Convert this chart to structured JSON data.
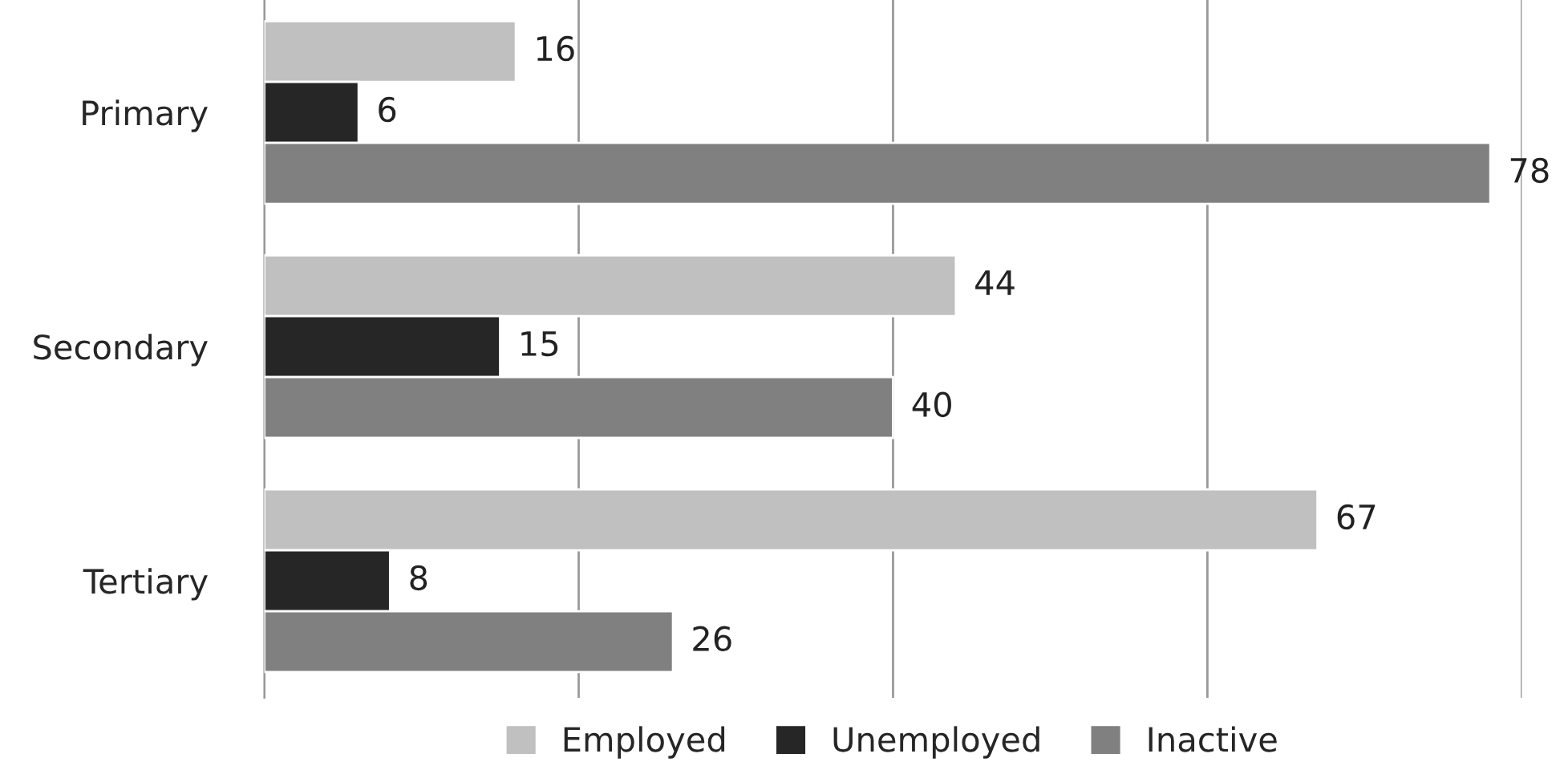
{
  "chart_data": {
    "type": "bar",
    "orientation": "horizontal",
    "categories": [
      "Primary",
      "Secondary",
      "Tertiary"
    ],
    "series": [
      {
        "name": "Employed",
        "color": "#c0c0c0",
        "values": [
          16,
          44,
          67
        ]
      },
      {
        "name": "Unemployed",
        "color": "#262626",
        "values": [
          6,
          15,
          8
        ]
      },
      {
        "name": "Inactive",
        "color": "#808080",
        "values": [
          78,
          40,
          26
        ]
      }
    ],
    "xlim": [
      0,
      80
    ],
    "xticks": [
      {
        "value": 0,
        "label": null
      },
      {
        "value": 20,
        "label": null
      },
      {
        "value": 40,
        "label": null
      },
      {
        "value": 60,
        "label": null
      },
      {
        "value": 80,
        "label": null
      }
    ],
    "tick_labels": "y",
    "grid": "x",
    "legend": "bottom",
    "data_labels": true
  }
}
